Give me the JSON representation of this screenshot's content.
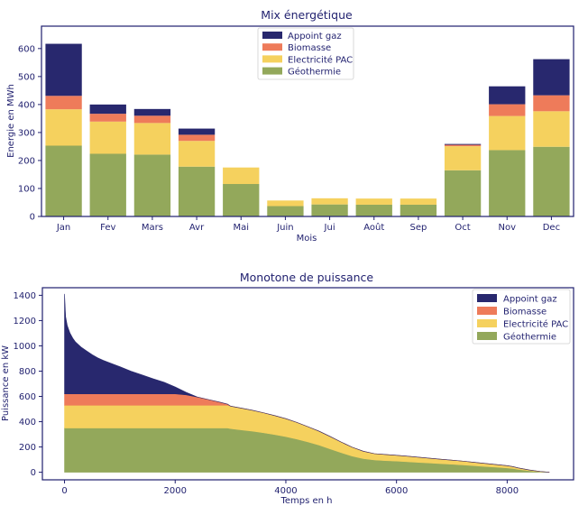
{
  "colors": {
    "appoint": "#28286e",
    "biomasse": "#ee7b5a",
    "pac": "#f5d15e",
    "geo": "#93a85b",
    "axis": "#1f1f6e"
  },
  "chart_data": [
    {
      "type": "bar",
      "stacked": true,
      "title": "Mix énergétique",
      "xlabel": "Mois",
      "ylabel": "Energie en MWh",
      "ylim": [
        0,
        680
      ],
      "yticks": [
        0,
        100,
        200,
        300,
        400,
        500,
        600
      ],
      "legend_position": "top-center",
      "categories": [
        "Jan",
        "Fev",
        "Mars",
        "Avr",
        "Mai",
        "Juin",
        "Jui",
        "Août",
        "Sep",
        "Oct",
        "Nov",
        "Dec"
      ],
      "series": [
        {
          "name": "Géothermie",
          "color_key": "geo",
          "values": [
            253,
            224,
            221,
            178,
            116,
            37,
            43,
            42,
            42,
            165,
            237,
            249
          ]
        },
        {
          "name": "Electricité PAC",
          "color_key": "pac",
          "values": [
            130,
            115,
            113,
            92,
            59,
            20,
            22,
            22,
            22,
            86,
            122,
            127
          ]
        },
        {
          "name": "Biomasse",
          "color_key": "biomasse",
          "values": [
            48,
            28,
            26,
            22,
            0,
            0,
            0,
            0,
            0,
            5,
            42,
            57
          ]
        },
        {
          "name": "Appoint gaz",
          "color_key": "appoint",
          "values": [
            186,
            33,
            24,
            22,
            0,
            0,
            0,
            0,
            0,
            3,
            64,
            129
          ]
        }
      ],
      "legend_order": [
        "Appoint gaz",
        "Biomasse",
        "Electricité PAC",
        "Géothermie"
      ]
    },
    {
      "type": "area",
      "stacked": true,
      "title": "Monotone de puissance",
      "xlabel": "Temps en h",
      "ylabel": "Puissance en kW",
      "xlim": [
        -400,
        9200
      ],
      "ylim": [
        -60,
        1460
      ],
      "xticks": [
        0,
        2000,
        4000,
        6000,
        8000
      ],
      "yticks": [
        0,
        200,
        400,
        600,
        800,
        1000,
        1200,
        1400
      ],
      "legend_position": "top-right",
      "legend_order": [
        "Appoint gaz",
        "Biomasse",
        "Electricité PAC",
        "Géothermie"
      ],
      "x": [
        0,
        20,
        50,
        100,
        150,
        200,
        300,
        400,
        500,
        600,
        700,
        800,
        1000,
        1200,
        1400,
        1600,
        1800,
        2000,
        2200,
        2400,
        2600,
        2800,
        2950,
        3000,
        3200,
        3400,
        3600,
        3800,
        4000,
        4200,
        4400,
        4600,
        4800,
        5000,
        5200,
        5400,
        5600,
        5800,
        6000,
        6200,
        6400,
        6600,
        6800,
        7000,
        7200,
        7400,
        7600,
        7800,
        8000,
        8100,
        8200,
        8400,
        8600,
        8760
      ],
      "series": [
        {
          "name": "Géothermie",
          "color_key": "geo",
          "values": [
            350,
            350,
            350,
            350,
            350,
            350,
            350,
            350,
            350,
            350,
            350,
            350,
            350,
            350,
            350,
            350,
            350,
            350,
            350,
            350,
            350,
            350,
            350,
            345,
            335,
            325,
            312,
            298,
            282,
            262,
            240,
            215,
            185,
            155,
            128,
            108,
            97,
            92,
            88,
            83,
            78,
            73,
            68,
            63,
            58,
            52,
            46,
            40,
            34,
            30,
            22,
            12,
            4,
            0
          ]
        },
        {
          "name": "Electricité PAC",
          "color_key": "pac",
          "values": [
            180,
            180,
            180,
            180,
            180,
            180,
            180,
            180,
            180,
            180,
            180,
            180,
            180,
            180,
            180,
            180,
            180,
            180,
            180,
            180,
            180,
            180,
            180,
            178,
            172,
            165,
            158,
            150,
            142,
            132,
            120,
            110,
            98,
            84,
            70,
            58,
            50,
            48,
            46,
            44,
            41,
            38,
            35,
            33,
            30,
            27,
            24,
            21,
            18,
            15,
            12,
            6,
            2,
            0
          ]
        },
        {
          "name": "Biomasse",
          "color_key": "biomasse",
          "values": [
            90,
            90,
            90,
            90,
            90,
            90,
            90,
            90,
            90,
            90,
            90,
            90,
            90,
            90,
            90,
            90,
            90,
            90,
            82,
            65,
            45,
            25,
            8,
            0,
            0,
            0,
            0,
            0,
            0,
            0,
            0,
            0,
            0,
            0,
            0,
            0,
            0,
            0,
            0,
            0,
            0,
            0,
            0,
            0,
            0,
            0,
            0,
            0,
            0,
            0,
            0,
            0,
            0,
            0
          ]
        },
        {
          "name": "Appoint gaz",
          "color_key": "appoint",
          "values": [
            790,
            610,
            540,
            480,
            440,
            410,
            370,
            340,
            310,
            285,
            265,
            248,
            215,
            180,
            150,
            120,
            92,
            55,
            20,
            0,
            0,
            0,
            0,
            0,
            0,
            0,
            0,
            0,
            0,
            0,
            0,
            0,
            0,
            0,
            0,
            0,
            0,
            0,
            0,
            0,
            0,
            0,
            0,
            0,
            0,
            0,
            0,
            0,
            0,
            0,
            0,
            0,
            0,
            0
          ]
        }
      ]
    }
  ]
}
